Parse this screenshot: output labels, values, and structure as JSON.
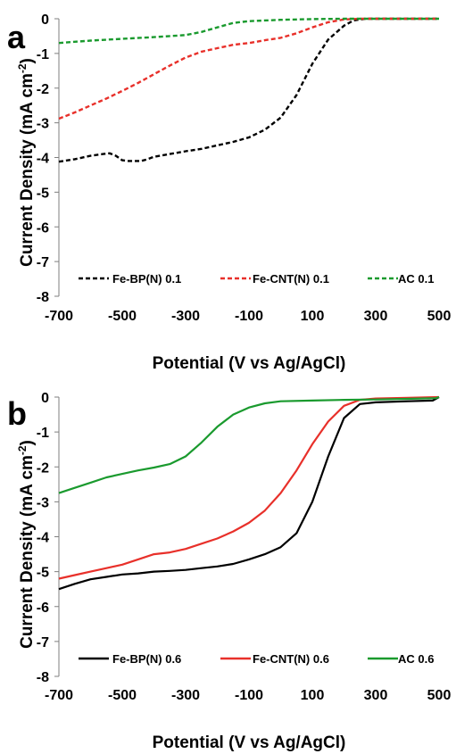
{
  "chart_data": [
    {
      "type": "line",
      "panel_label": "a",
      "xlabel": "Potential (V vs Ag/AgCl)",
      "ylabel": "Current Density (mA cm",
      "ylabel_sup": "-2",
      "ylabel_close": ")",
      "xlim": [
        -700,
        500
      ],
      "ylim": [
        -8,
        0
      ],
      "xticks": [
        -700,
        -500,
        -300,
        -100,
        100,
        300,
        500
      ],
      "yticks": [
        0,
        -1,
        -2,
        -3,
        -4,
        -5,
        -6,
        -7,
        -8
      ],
      "grid": false,
      "legend_position": "bottom",
      "series": [
        {
          "name": "Fe-BP(N) 0.1",
          "color": "#000000",
          "dash": "dashed",
          "x": [
            -700,
            -650,
            -600,
            -560,
            -540,
            -520,
            -500,
            -480,
            -460,
            -440,
            -420,
            -400,
            -350,
            -300,
            -250,
            -200,
            -150,
            -100,
            -50,
            0,
            50,
            100,
            150,
            200,
            230,
            250,
            270,
            300,
            350,
            400,
            450,
            500
          ],
          "y": [
            -4.12,
            -4.05,
            -3.95,
            -3.9,
            -3.88,
            -3.95,
            -4.08,
            -4.1,
            -4.1,
            -4.1,
            -4.05,
            -3.98,
            -3.9,
            -3.82,
            -3.75,
            -3.65,
            -3.55,
            -3.42,
            -3.2,
            -2.85,
            -2.2,
            -1.3,
            -0.6,
            -0.2,
            -0.05,
            -0.02,
            0,
            0,
            0,
            0,
            0,
            0
          ]
        },
        {
          "name": "Fe-CNT(N) 0.1",
          "color": "#e8302a",
          "dash": "dashed",
          "x": [
            -700,
            -650,
            -600,
            -550,
            -500,
            -450,
            -400,
            -350,
            -300,
            -250,
            -200,
            -150,
            -100,
            -50,
            0,
            50,
            100,
            150,
            200,
            250,
            300,
            350,
            400,
            450,
            500
          ],
          "y": [
            -2.88,
            -2.7,
            -2.5,
            -2.3,
            -2.08,
            -1.85,
            -1.6,
            -1.35,
            -1.12,
            -0.95,
            -0.85,
            -0.75,
            -0.7,
            -0.62,
            -0.55,
            -0.42,
            -0.25,
            -0.1,
            -0.02,
            0,
            0,
            0,
            0,
            0,
            0
          ]
        },
        {
          "name": "AC 0.1",
          "color": "#1a9a2e",
          "dash": "dashed",
          "x": [
            -700,
            -600,
            -500,
            -400,
            -300,
            -250,
            -200,
            -150,
            -100,
            0,
            100,
            200,
            300,
            400,
            500
          ],
          "y": [
            -0.7,
            -0.63,
            -0.58,
            -0.53,
            -0.47,
            -0.38,
            -0.25,
            -0.12,
            -0.07,
            -0.03,
            -0.01,
            0,
            0,
            0,
            0
          ]
        }
      ]
    },
    {
      "type": "line",
      "panel_label": "b",
      "xlabel": "Potential (V vs Ag/AgCl)",
      "ylabel": "Current Density (mA cm",
      "ylabel_sup": "-2",
      "ylabel_close": ")",
      "xlim": [
        -700,
        500
      ],
      "ylim": [
        -8,
        0
      ],
      "xticks": [
        -700,
        -500,
        -300,
        -100,
        100,
        300,
        500
      ],
      "yticks": [
        0,
        -1,
        -2,
        -3,
        -4,
        -5,
        -6,
        -7,
        -8
      ],
      "grid": false,
      "legend_position": "bottom",
      "series": [
        {
          "name": "Fe-BP(N) 0.6",
          "color": "#000000",
          "dash": "solid",
          "x": [
            -700,
            -650,
            -600,
            -550,
            -500,
            -450,
            -400,
            -350,
            -300,
            -250,
            -200,
            -150,
            -100,
            -50,
            0,
            50,
            100,
            150,
            200,
            250,
            300,
            400,
            480,
            490,
            500
          ],
          "y": [
            -5.5,
            -5.35,
            -5.22,
            -5.15,
            -5.08,
            -5.05,
            -5.0,
            -4.98,
            -4.95,
            -4.9,
            -4.85,
            -4.78,
            -4.65,
            -4.5,
            -4.3,
            -3.9,
            -3.0,
            -1.7,
            -0.6,
            -0.2,
            -0.15,
            -0.12,
            -0.1,
            -0.05,
            0
          ]
        },
        {
          "name": "Fe-CNT(N) 0.6",
          "color": "#e8302a",
          "dash": "solid",
          "x": [
            -700,
            -650,
            -600,
            -550,
            -500,
            -450,
            -400,
            -350,
            -300,
            -250,
            -200,
            -150,
            -100,
            -50,
            0,
            50,
            100,
            150,
            200,
            250,
            300,
            400,
            500
          ],
          "y": [
            -5.2,
            -5.1,
            -5.0,
            -4.9,
            -4.8,
            -4.65,
            -4.5,
            -4.45,
            -4.35,
            -4.2,
            -4.05,
            -3.85,
            -3.6,
            -3.25,
            -2.75,
            -2.1,
            -1.35,
            -0.7,
            -0.25,
            -0.08,
            -0.04,
            -0.02,
            0
          ]
        },
        {
          "name": "AC 0.6",
          "color": "#1a9a2e",
          "dash": "solid",
          "x": [
            -700,
            -650,
            -600,
            -550,
            -500,
            -450,
            -400,
            -350,
            -300,
            -250,
            -200,
            -150,
            -100,
            -50,
            0,
            100,
            200,
            300,
            400,
            490,
            500
          ],
          "y": [
            -2.75,
            -2.6,
            -2.45,
            -2.3,
            -2.2,
            -2.1,
            -2.02,
            -1.92,
            -1.7,
            -1.3,
            -0.85,
            -0.5,
            -0.3,
            -0.18,
            -0.12,
            -0.1,
            -0.08,
            -0.07,
            -0.05,
            -0.03,
            0
          ]
        }
      ]
    }
  ]
}
